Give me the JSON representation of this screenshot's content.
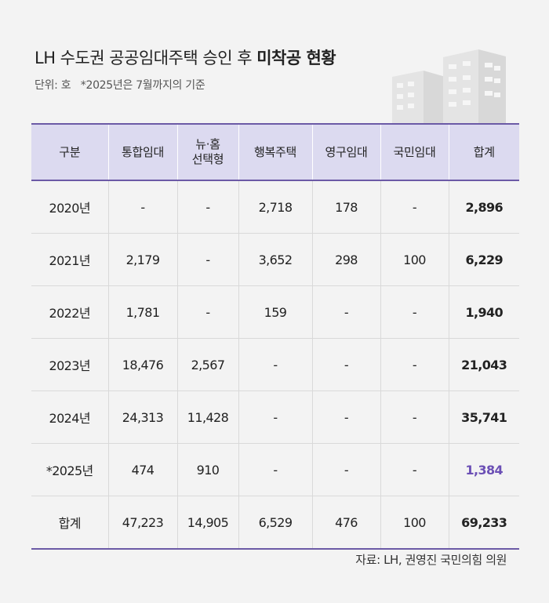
{
  "title": {
    "prefix": "LH 수도권 공공임대주택 승인 후 ",
    "highlight": "미착공 현황"
  },
  "subtitle": "단위: 호   *2025년은 7월까지의 기준",
  "chart_data": {
    "type": "table",
    "columns": [
      "구분",
      "통합임대",
      "뉴·홈\n선택형",
      "행복주택",
      "영구임대",
      "국민임대",
      "합계"
    ],
    "rows": [
      {
        "label": "2020년",
        "values": [
          "-",
          "-",
          "2,718",
          "178",
          "-"
        ],
        "total": "2,896"
      },
      {
        "label": "2021년",
        "values": [
          "2,179",
          "-",
          "3,652",
          "298",
          "100"
        ],
        "total": "6,229"
      },
      {
        "label": "2022년",
        "values": [
          "1,781",
          "-",
          "159",
          "-",
          "-"
        ],
        "total": "1,940"
      },
      {
        "label": "2023년",
        "values": [
          "18,476",
          "2,567",
          "-",
          "-",
          "-"
        ],
        "total": "21,043"
      },
      {
        "label": "2024년",
        "values": [
          "24,313",
          "11,428",
          "-",
          "-",
          "-"
        ],
        "total": "35,741"
      },
      {
        "label": "*2025년",
        "values": [
          "474",
          "910",
          "-",
          "-",
          "-"
        ],
        "total": "1,384"
      },
      {
        "label": "합계",
        "values": [
          "47,223",
          "14,905",
          "6,529",
          "476",
          "100"
        ],
        "total": "69,233"
      }
    ],
    "highlight_color": "#6b4fb5",
    "header_color": "#dcdaf0",
    "rule_color": "#6b5aa6"
  },
  "source": "자료: LH, 권영진 국민의힘 의원"
}
